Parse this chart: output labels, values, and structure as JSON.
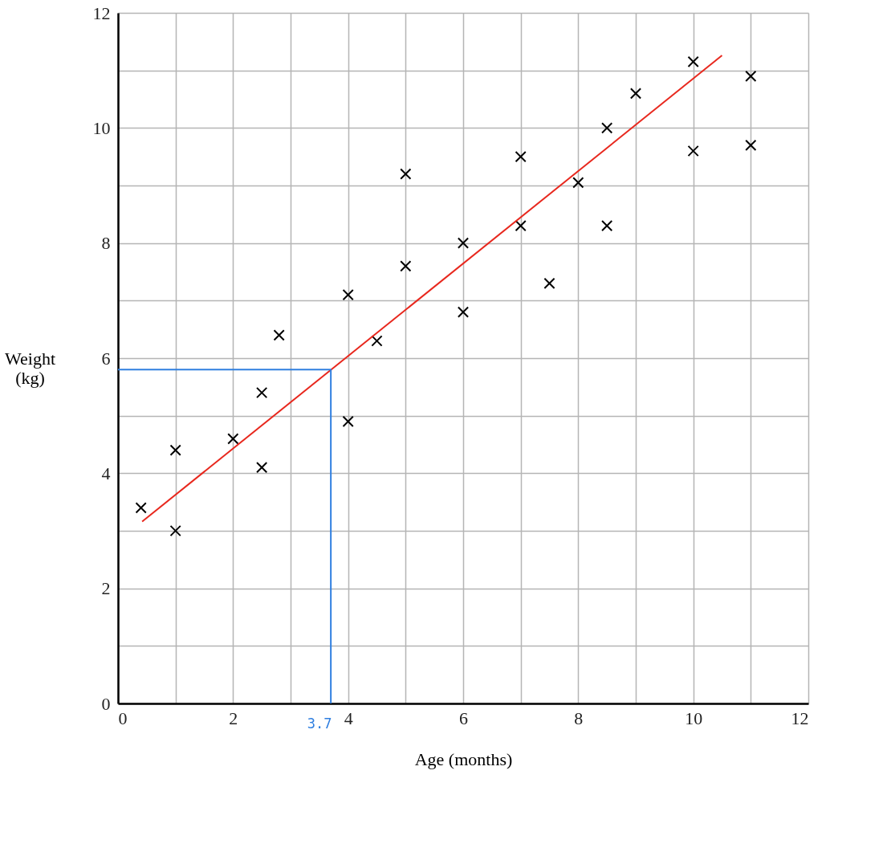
{
  "chart_data": {
    "type": "scatter",
    "xlabel": "Age (months)",
    "ylabel": "Weight (kg)",
    "xlim": [
      0,
      12
    ],
    "ylim": [
      0,
      12
    ],
    "xticks": [
      0,
      {
        "value": 1,
        "label": null
      },
      2,
      {
        "value": 3,
        "label": null
      },
      4,
      {
        "value": 5,
        "label": null
      },
      6,
      {
        "value": 7,
        "label": null
      },
      8,
      {
        "value": 9,
        "label": null
      },
      10,
      {
        "value": 11,
        "label": null
      },
      12
    ],
    "yticks": [
      0,
      {
        "value": 1,
        "label": null
      },
      2,
      {
        "value": 3,
        "label": null
      },
      4,
      {
        "value": 5,
        "label": null
      },
      6,
      {
        "value": 7,
        "label": null
      },
      8,
      {
        "value": 9,
        "label": null
      },
      10,
      {
        "value": 11,
        "label": null
      },
      12
    ],
    "grid": true,
    "marker": "cross",
    "series": [
      {
        "color": "#000000",
        "x": [
          0.4,
          1.0,
          1.0,
          2.0,
          2.5,
          2.5,
          2.8,
          4.0,
          4.0,
          4.5,
          5.0,
          5.0,
          6.0,
          6.0,
          7.0,
          7.0,
          7.5,
          8.0,
          8.5,
          8.5,
          9.0,
          10.0,
          10.0,
          11.0,
          11.0
        ],
        "values": [
          3.4,
          4.4,
          3.0,
          4.6,
          5.4,
          4.1,
          6.4,
          7.1,
          4.9,
          6.3,
          9.2,
          7.6,
          8.0,
          6.8,
          9.5,
          8.3,
          7.3,
          9.05,
          10.0,
          8.3,
          10.6,
          11.15,
          9.6,
          10.9,
          9.7
        ]
      },
      {
        "type": "line",
        "marker": "none",
        "color": "#e8281e",
        "x": [
          0.42,
          10.5
        ],
        "values": [
          3.16,
          11.26
        ]
      },
      {
        "type": "line",
        "marker": "none",
        "color": "#2f7fe0",
        "x": [
          0,
          3.7,
          3.7
        ],
        "values": [
          5.8,
          5.8,
          0
        ]
      }
    ],
    "annotations": [
      {
        "text": "3.7",
        "x": 3.7,
        "y": 0
      }
    ]
  }
}
